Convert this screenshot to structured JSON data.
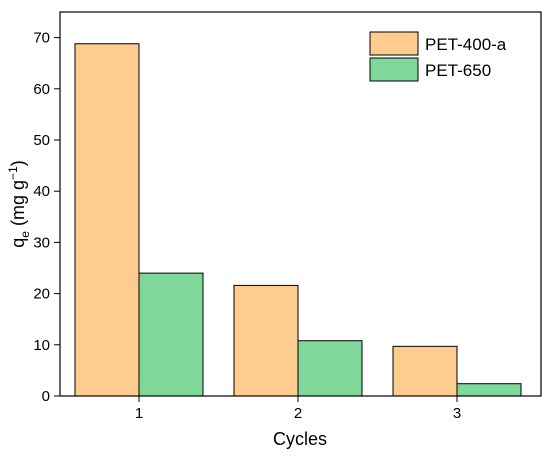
{
  "chart_data": {
    "type": "bar",
    "categories": [
      "1",
      "2",
      "3"
    ],
    "series": [
      {
        "name": "PET-400-a",
        "values": [
          68.8,
          21.6,
          9.7
        ],
        "color": "#FFCC8F"
      },
      {
        "name": "PET-650",
        "values": [
          24.0,
          10.8,
          2.4
        ],
        "color": "#7FD89A"
      }
    ],
    "xlabel": "Cycles",
    "ylabel": {
      "main": "q",
      "sub": "e",
      "unit_open": " (mg g",
      "unit_sup": "−1",
      "unit_close": ")"
    },
    "ylim": [
      0,
      75
    ],
    "yticks": [
      "0",
      "10",
      "20",
      "30",
      "40",
      "50",
      "60",
      "70"
    ],
    "grid": false,
    "legend": "top-right"
  }
}
